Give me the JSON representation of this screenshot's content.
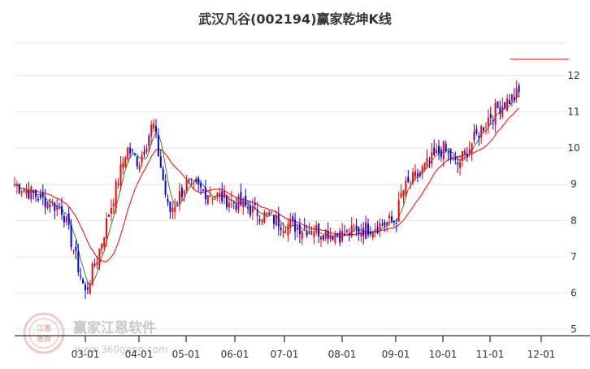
{
  "chart_data": {
    "type": "candlestick",
    "title": "武汉凡谷(002194)赢家乾坤K线",
    "y_ticks": [
      "12",
      "11",
      "10",
      "9",
      "8",
      "7",
      "6",
      "5"
    ],
    "y_tick_values": [
      12,
      11,
      10,
      9,
      8,
      7,
      6,
      5
    ],
    "ylim": [
      5,
      12.5
    ],
    "x_ticks": [
      "03-01",
      "04-01",
      "05-01",
      "06-01",
      "07-01",
      "08-01",
      "09-01",
      "10-01",
      "11-01",
      "12-01"
    ],
    "grid": true,
    "colors": {
      "up": "#ff0000",
      "down": "#0000ff",
      "special": "#800080",
      "ma_fast": "#2e8b2e",
      "ma_slow": "#ff0000",
      "grid": "#e6e6e6",
      "axis": "#000000"
    },
    "key_prices": [
      {
        "date": "02-01",
        "price": 9.0
      },
      {
        "date": "02-20",
        "price": 8.3
      },
      {
        "date": "03-01",
        "price": 6.0
      },
      {
        "date": "03-08",
        "price": 7.0
      },
      {
        "date": "03-25",
        "price": 10.0
      },
      {
        "date": "04-01",
        "price": 9.6
      },
      {
        "date": "04-10",
        "price": 10.7
      },
      {
        "date": "04-20",
        "price": 8.2
      },
      {
        "date": "05-01",
        "price": 9.0
      },
      {
        "date": "06-01",
        "price": 8.5
      },
      {
        "date": "07-01",
        "price": 7.9
      },
      {
        "date": "08-01",
        "price": 7.6
      },
      {
        "date": "09-01",
        "price": 8.0
      },
      {
        "date": "09-05",
        "price": 8.8
      },
      {
        "date": "10-01",
        "price": 10.0
      },
      {
        "date": "10-10",
        "price": 9.5
      },
      {
        "date": "11-01",
        "price": 10.9
      },
      {
        "date": "11-08",
        "price": 11.2
      },
      {
        "date": "11-18",
        "price": 11.5
      }
    ],
    "legend_marker": true
  },
  "watermark": {
    "name": "赢家江恩软件",
    "url": "www.360gann.com",
    "stamp_top": "江恩",
    "stamp_bottom": "恩尚"
  }
}
